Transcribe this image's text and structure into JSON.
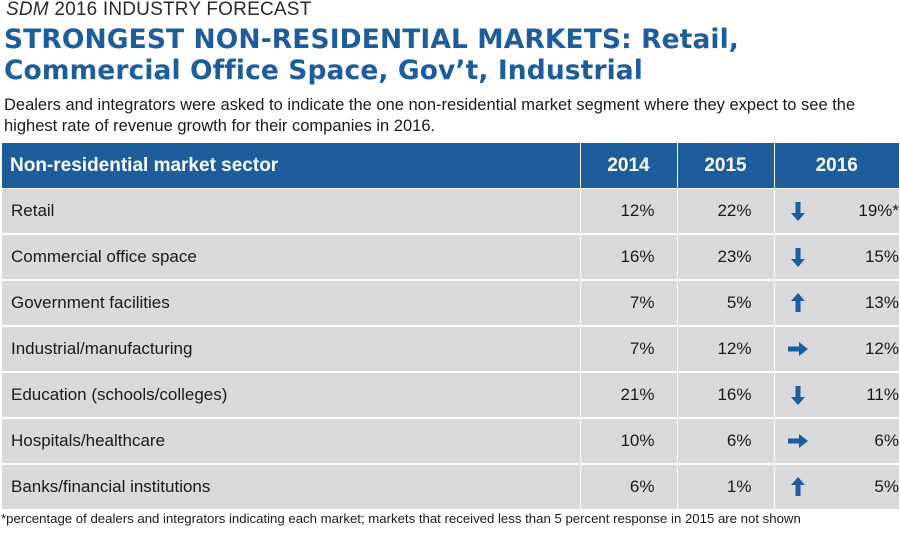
{
  "header": {
    "kicker_brand": "SDM",
    "kicker_rest": "2016 INDUSTRY FORECAST",
    "title_line1": "STRONGEST NON-RESIDENTIAL MARKETS: Retail,",
    "title_line2": "Commercial Office Space, Gov’t, Industrial",
    "subtitle": "Dealers and integrators were asked to indicate the one non-residential market segment where they expect to see the highest rate of revenue growth for their companies in 2016."
  },
  "colors": {
    "accent": "#1d5d9b",
    "row_bg": "#d9d9db",
    "arrow": "#1d5d9b"
  },
  "chart_data": {
    "type": "table",
    "columns": [
      "Non-residential market sector",
      "2014",
      "2015",
      "2016"
    ],
    "rows": [
      {
        "sector": "Retail",
        "y2014": "12%",
        "y2015": "22%",
        "y2016": "19%*",
        "trend": "down"
      },
      {
        "sector": "Commercial office space",
        "y2014": "16%",
        "y2015": "23%",
        "y2016": "15%",
        "trend": "down"
      },
      {
        "sector": "Government facilities",
        "y2014": "7%",
        "y2015": "5%",
        "y2016": "13%",
        "trend": "up"
      },
      {
        "sector": "Industrial/manufacturing",
        "y2014": "7%",
        "y2015": "12%",
        "y2016": "12%",
        "trend": "flat"
      },
      {
        "sector": "Education (schools/colleges)",
        "y2014": "21%",
        "y2015": "16%",
        "y2016": "11%",
        "trend": "down"
      },
      {
        "sector": "Hospitals/healthcare",
        "y2014": "10%",
        "y2015": "6%",
        "y2016": "6%",
        "trend": "flat"
      },
      {
        "sector": "Banks/financial institutions",
        "y2014": "6%",
        "y2015": "1%",
        "y2016": "5%",
        "trend": "up"
      }
    ],
    "footnote": "*percentage of dealers and integrators indicating each market; markets that received less than 5 percent response in 2015 are not shown"
  }
}
